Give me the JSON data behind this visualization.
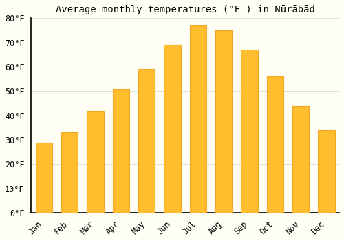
{
  "title": "Average monthly temperatures (°F ) in Nūrābād",
  "months": [
    "Jan",
    "Feb",
    "Mar",
    "Apr",
    "May",
    "Jun",
    "Jul",
    "Aug",
    "Sep",
    "Oct",
    "Nov",
    "Dec"
  ],
  "values": [
    29,
    33,
    42,
    51,
    59,
    69,
    77,
    75,
    67,
    56,
    44,
    34
  ],
  "bar_color": "#FFBE2E",
  "bar_edge_color": "#F5A623",
  "background_color": "#FFFFF5",
  "grid_color": "#D8D8D8",
  "ylim": [
    0,
    80
  ],
  "yticks": [
    0,
    10,
    20,
    30,
    40,
    50,
    60,
    70,
    80
  ],
  "title_fontsize": 10,
  "tick_fontsize": 8.5,
  "font_family": "monospace"
}
